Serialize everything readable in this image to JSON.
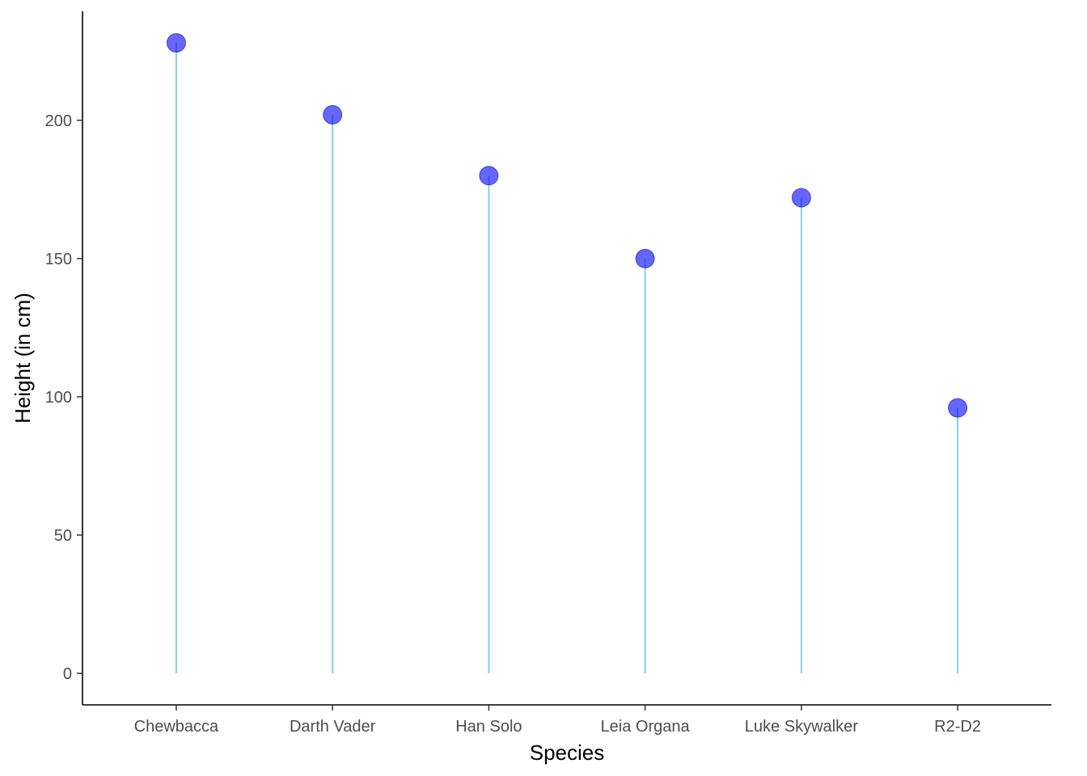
{
  "chart_data": {
    "type": "lollipop",
    "categories": [
      "Chewbacca",
      "Darth Vader",
      "Han Solo",
      "Leia Organa",
      "Luke Skywalker",
      "R2-D2"
    ],
    "values": [
      228,
      202,
      180,
      150,
      172,
      96
    ],
    "xlabel": "Species",
    "ylabel": "Height (in cm)",
    "ylim": [
      -11.4,
      239.4
    ],
    "yticks": [
      0,
      50,
      100,
      150,
      200
    ],
    "grid": false,
    "colors": {
      "stem": "#87CEEB",
      "point": "#0000FF",
      "axis": "#000000"
    }
  }
}
